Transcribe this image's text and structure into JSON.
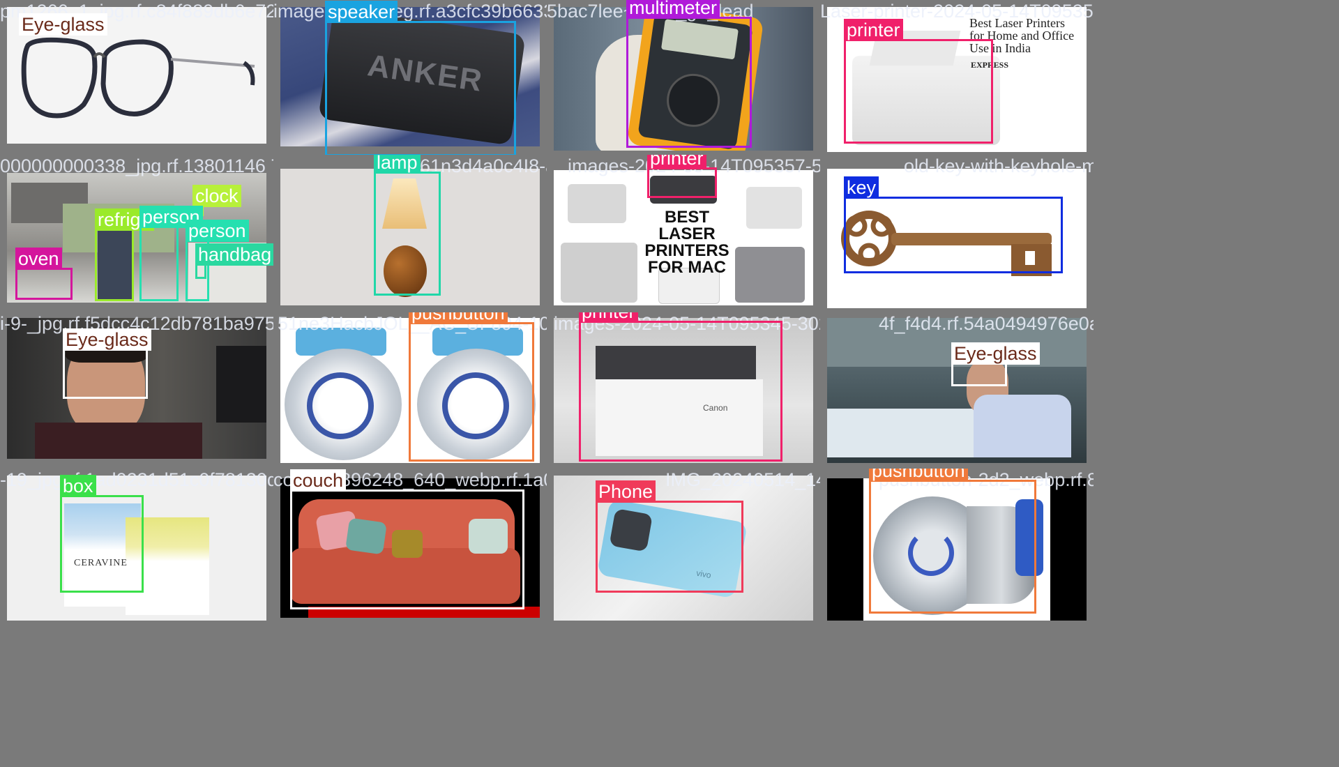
{
  "colors": {
    "eyeglass": "#ffffff",
    "speaker": "#1aa3e0",
    "multimeter": "#b01ad9",
    "printer": "#f0206a",
    "lamp": "#20d7a8",
    "key": "#0f2de0",
    "clock": "#b7f03a",
    "refrigerator": "#9aea2a",
    "person": "#25e0b0",
    "oven": "#d4159c",
    "handbag": "#2ad8a0",
    "pushbutton": "#f0793a",
    "box": "#3ae04a",
    "couch": "#ffffff",
    "phone": "#f03a5a"
  },
  "tiles": [
    {
      "filename": "pm1266_1_jpg.rf.c84f889db6e7294e403b3248",
      "labels": [
        "Eye-glass"
      ]
    },
    {
      "filename": "images-48-_jpeg.rf.a3cfc39b66334a6ac7bde",
      "labels": [
        "speaker"
      ]
    },
    {
      "filename": "5bac7lee~dmm_g1_lead",
      "labels": [
        "multimeter",
        "printer"
      ]
    },
    {
      "filename": "Laser-printer-2024-05-14T095358-057_jpg",
      "labels": [
        "printer"
      ]
    },
    {
      "filename": "000000000338_jpg.rf.13801146 7f57d01d8371",
      "labels": [
        "clock",
        "refrige",
        "person",
        "person",
        "oven",
        "handbag"
      ]
    },
    {
      "filename": "61n3d4a0c4I8-a4dcd3e1b8de6c4f4",
      "labels": [
        "lamp"
      ]
    },
    {
      "filename": "images-2024-05-14T095357-560_jpg",
      "labels": [
        "printer"
      ]
    },
    {
      "filename": "old-key-with-keyhole-middle_1161317",
      "labels": [
        "key"
      ]
    },
    {
      "filename": "i-9-_jpg.rf.f5dcc4c12db781ba975cc09",
      "labels": [
        "Eye-glass"
      ]
    },
    {
      "filename": "51ne3HacbJOL__AC_UF894-1000_QL80",
      "labels": [
        "pushbutton",
        "pushbutton"
      ]
    },
    {
      "filename": "images-2024-05-14T095345-302_jpg",
      "labels": [
        "printer"
      ]
    },
    {
      "filename": "4f_f4d4.rf.54a0494976e0ab51483d3",
      "labels": [
        "Eye-glass"
      ]
    },
    {
      "filename": "-19_jpg.rf.1ad0231d51c0f78130d64e9",
      "labels": [
        "box"
      ]
    },
    {
      "filename": "couch-6896248_640_webp.rf.1a0i",
      "labels": [
        "couch"
      ]
    },
    {
      "filename": "IMG_20240514_145a72941e",
      "labels": [
        "Phone"
      ]
    },
    {
      "filename": "pushbutton-2d2_webp.rf.8474f9a7b9",
      "labels": [
        "pushbutton"
      ]
    }
  ],
  "product_text": {
    "anker": "ANKER",
    "printer_ad_title": "Best Laser Printers for Home and Office Use in India",
    "printer_ad_brand": "EXPRESS",
    "mac_printers": "BEST LASER PRINTERS FOR MAC",
    "canon": "Canon",
    "ceravine": "CERAVINE",
    "phone_brand": "vivo"
  }
}
